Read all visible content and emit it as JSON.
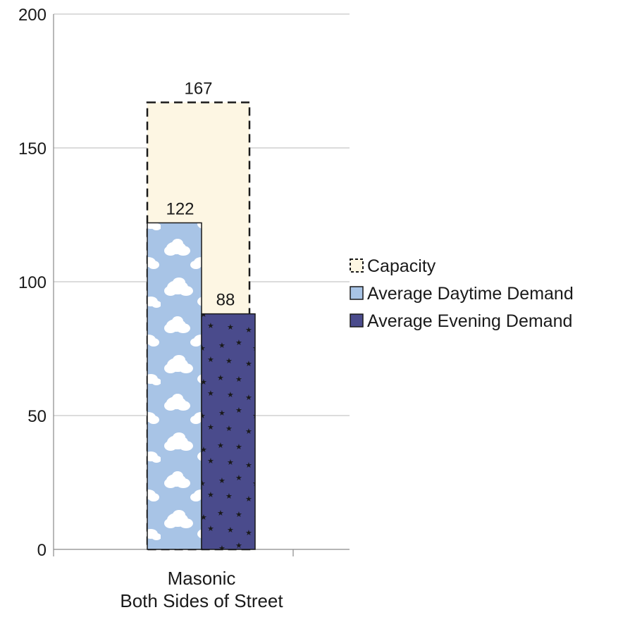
{
  "chart_data": {
    "type": "bar",
    "title": "",
    "xlabel": "",
    "ylabel": "",
    "ylim": [
      0,
      200
    ],
    "yticks": [
      0,
      50,
      100,
      150,
      200
    ],
    "grid": true,
    "legend_position": "right",
    "categories": [
      "Masonic\nBoth Sides of Street"
    ],
    "category_lines": [
      "Masonic",
      "Both Sides of Street"
    ],
    "series": [
      {
        "name": "Capacity",
        "values": [
          167
        ],
        "color": "#fdf6e3",
        "stroke": "#1a1a1a",
        "style": "dashed-outline"
      },
      {
        "name": "Average Daytime Demand",
        "values": [
          122
        ],
        "color": "#a8c4e6",
        "pattern": "clouds"
      },
      {
        "name": "Average Evening Demand",
        "values": [
          88
        ],
        "color": "#4a4b8c",
        "pattern": "stars"
      }
    ]
  }
}
